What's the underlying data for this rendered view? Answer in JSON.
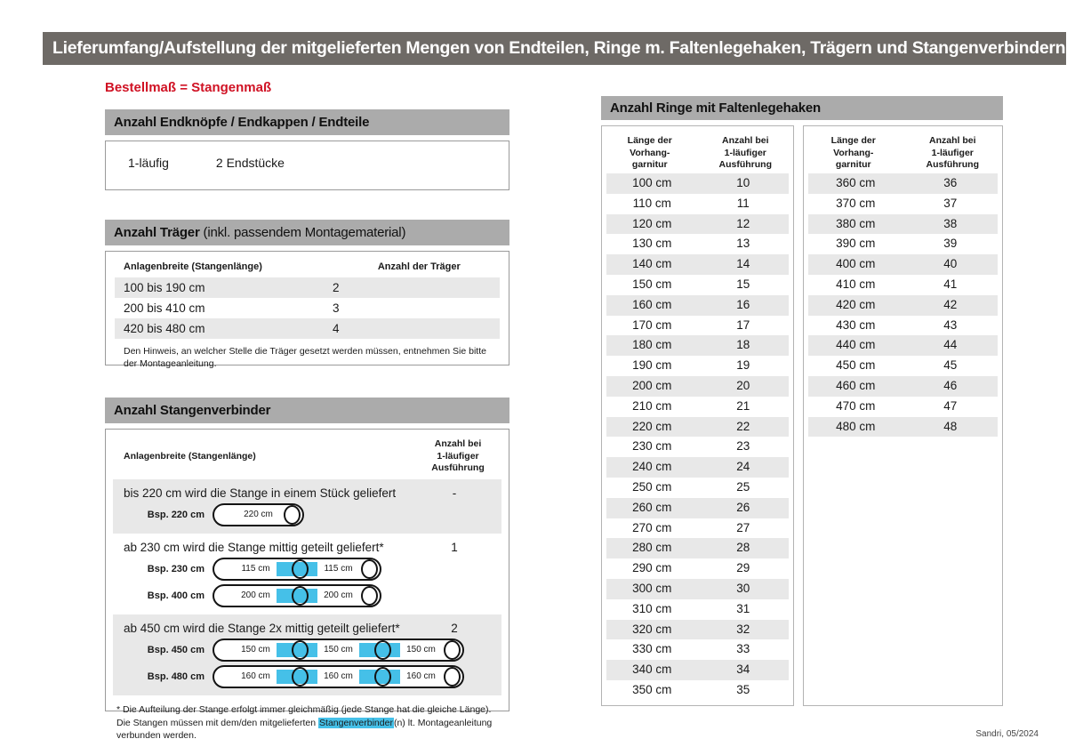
{
  "colors": {
    "topbar_gray": "#6e6a66",
    "section_gray": "#ababab",
    "row_gray": "#e8e8e8",
    "accent_red": "#d01224",
    "connector_blue": "#45c0e8"
  },
  "page": {
    "title": "Lieferumfang/Aufstellung der mitgelieferten Mengen von Endteilen, Ringe m. Faltenlegehaken, Trägern und Stangenverbindern:",
    "subtitle": "Bestellmaß = Stangenmaß",
    "footer": "Sandri, 05/2024"
  },
  "endteile": {
    "header": "Anzahl Endknöpfe / Endkappen / Endteile",
    "row": {
      "label": "1-läufig",
      "value": "2 Endstücke"
    }
  },
  "traeger": {
    "header_bold": "Anzahl Träger",
    "header_rest": " (inkl. passendem Montagematerial)",
    "col1": "Anlagenbreite (Stangenlänge)",
    "col2": "Anzahl der Träger",
    "rows": [
      [
        "100 bis 190 cm",
        "2"
      ],
      [
        "200 bis 410 cm",
        "3"
      ],
      [
        "420 bis 480 cm",
        "4"
      ]
    ],
    "note": "Den Hinweis, an welcher Stelle die Träger gesetzt werden müssen, entnehmen Sie bitte der Montageanleitung."
  },
  "verbinder": {
    "header": "Anzahl Stangenverbinder",
    "col1": "Anlagenbreite (Stangenlänge)",
    "col2": "Anzahl bei\n1-läufiger\nAusführung",
    "groups": [
      {
        "text": "bis 220 cm wird die Stange in einem Stück geliefert",
        "count": "-",
        "rods": [
          {
            "label": "Bsp. 220 cm",
            "segments": [
              "220 cm"
            ]
          }
        ]
      },
      {
        "text": "ab 230 cm wird die Stange mittig geteilt geliefert*",
        "count": "1",
        "rods": [
          {
            "label": "Bsp. 230 cm",
            "segments": [
              "115 cm",
              "115 cm"
            ]
          },
          {
            "label": "Bsp. 400 cm",
            "segments": [
              "200 cm",
              "200 cm"
            ]
          }
        ]
      },
      {
        "text": "ab 450 cm wird die Stange 2x mittig geteilt geliefert*",
        "count": "2",
        "rods": [
          {
            "label": "Bsp. 450 cm",
            "segments": [
              "150 cm",
              "150 cm",
              "150 cm"
            ]
          },
          {
            "label": "Bsp. 480 cm",
            "segments": [
              "160 cm",
              "160 cm",
              "160 cm"
            ]
          }
        ]
      }
    ],
    "footnote_before": "* Die Aufteilung der Stange erfolgt immer gleichmäßig (jede Stange hat die gleiche Länge). Die Stangen müssen mit dem/den mitgelieferten ",
    "footnote_highlight": "Stangenverbinder",
    "footnote_after": "(n) lt. Montageanleitung verbunden werden."
  },
  "ringe": {
    "header": "Anzahl Ringe mit Faltenlegehaken",
    "col1": "Länge der\nVorhang-\ngarnitur",
    "col2": "Anzahl bei\n1-läufiger\nAusführung",
    "table1": [
      [
        "100 cm",
        "10"
      ],
      [
        "110 cm",
        "11"
      ],
      [
        "120 cm",
        "12"
      ],
      [
        "130 cm",
        "13"
      ],
      [
        "140 cm",
        "14"
      ],
      [
        "150 cm",
        "15"
      ],
      [
        "160 cm",
        "16"
      ],
      [
        "170 cm",
        "17"
      ],
      [
        "180 cm",
        "18"
      ],
      [
        "190 cm",
        "19"
      ],
      [
        "200 cm",
        "20"
      ],
      [
        "210 cm",
        "21"
      ],
      [
        "220 cm",
        "22"
      ],
      [
        "230 cm",
        "23"
      ],
      [
        "240 cm",
        "24"
      ],
      [
        "250 cm",
        "25"
      ],
      [
        "260 cm",
        "26"
      ],
      [
        "270 cm",
        "27"
      ],
      [
        "280 cm",
        "28"
      ],
      [
        "290 cm",
        "29"
      ],
      [
        "300 cm",
        "30"
      ],
      [
        "310 cm",
        "31"
      ],
      [
        "320 cm",
        "32"
      ],
      [
        "330 cm",
        "33"
      ],
      [
        "340 cm",
        "34"
      ],
      [
        "350 cm",
        "35"
      ]
    ],
    "table2": [
      [
        "360 cm",
        "36"
      ],
      [
        "370 cm",
        "37"
      ],
      [
        "380 cm",
        "38"
      ],
      [
        "390 cm",
        "39"
      ],
      [
        "400 cm",
        "40"
      ],
      [
        "410 cm",
        "41"
      ],
      [
        "420 cm",
        "42"
      ],
      [
        "430 cm",
        "43"
      ],
      [
        "440 cm",
        "44"
      ],
      [
        "450 cm",
        "45"
      ],
      [
        "460 cm",
        "46"
      ],
      [
        "470 cm",
        "47"
      ],
      [
        "480 cm",
        "48"
      ]
    ]
  }
}
